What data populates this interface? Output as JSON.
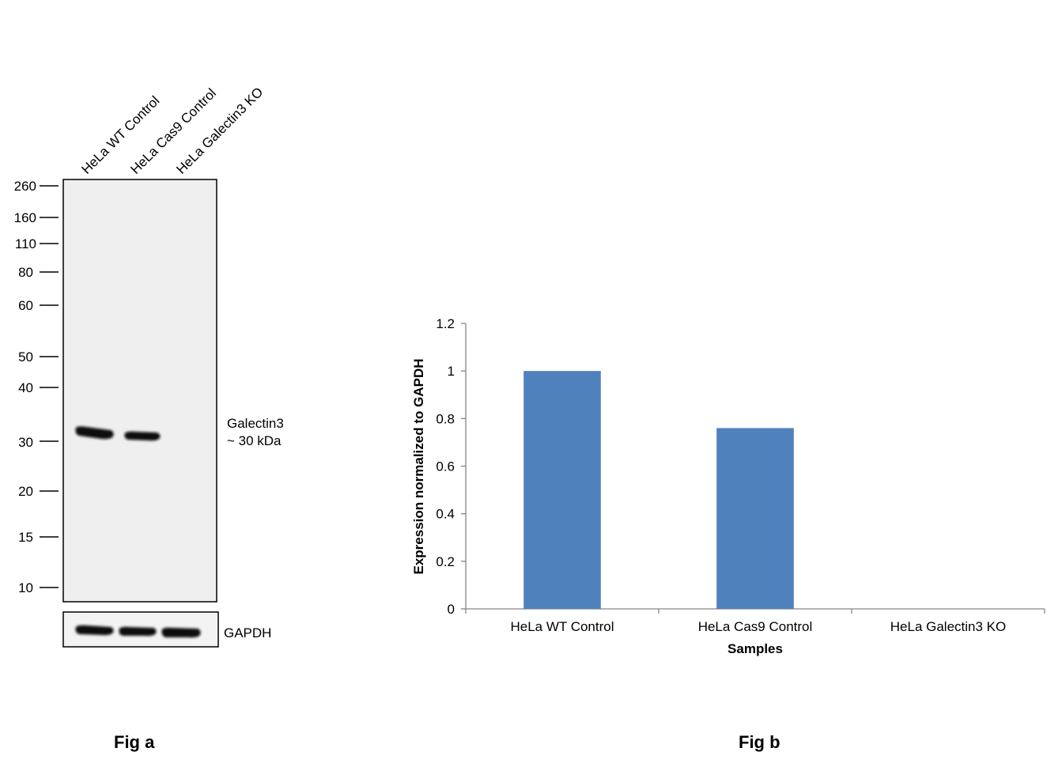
{
  "figure_a": {
    "label": "Fig a",
    "lanes": [
      "HeLa WT Control",
      "HeLa Cas9 Control",
      "HeLa Galectin3 KO"
    ],
    "markers": [
      "260",
      "160",
      "110",
      "80",
      "60",
      "50",
      "40",
      "30",
      "20",
      "15",
      "10"
    ],
    "band_label_line1": "Galectin3",
    "band_label_line2": "~ 30 kDa",
    "loading_control_label": "GAPDH"
  },
  "figure_b": {
    "label": "Fig b"
  },
  "chart_data": {
    "type": "bar",
    "categories": [
      "HeLa WT Control",
      "HeLa Cas9 Control",
      "HeLa Galectin3 KO"
    ],
    "values": [
      1.0,
      0.76,
      0.0
    ],
    "xlabel": "Samples",
    "ylabel": "Expression  normalized to GAPDH",
    "ylim": [
      0,
      1.2
    ],
    "yticks": [
      "0",
      "0.2",
      "0.4",
      "0.6",
      "0.8",
      "1",
      "1.2"
    ],
    "grid": false,
    "legend": "none",
    "bar_color": "#4f81bd"
  }
}
